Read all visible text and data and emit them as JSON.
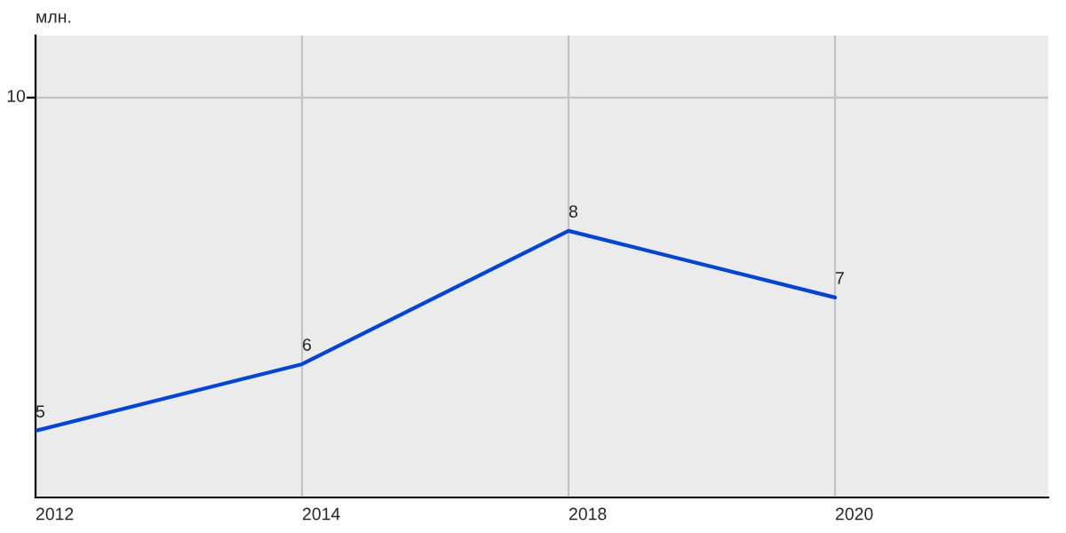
{
  "chart_data": {
    "type": "line",
    "annotations": [
      "млн."
    ],
    "categories": [
      "2012",
      "2014",
      "2018",
      "2020"
    ],
    "series": [
      {
        "color": "#0044dd",
        "values": [
          5,
          6,
          8,
          7
        ]
      }
    ],
    "ylim": [
      4,
      10.93
    ],
    "data_labels": true,
    "ref_lines": [
      {
        "axis": "y",
        "value": 10,
        "label": "10",
        "color": "#c4c4c4"
      }
    ],
    "grid": "x",
    "marker": "none",
    "line_style": "solid"
  }
}
